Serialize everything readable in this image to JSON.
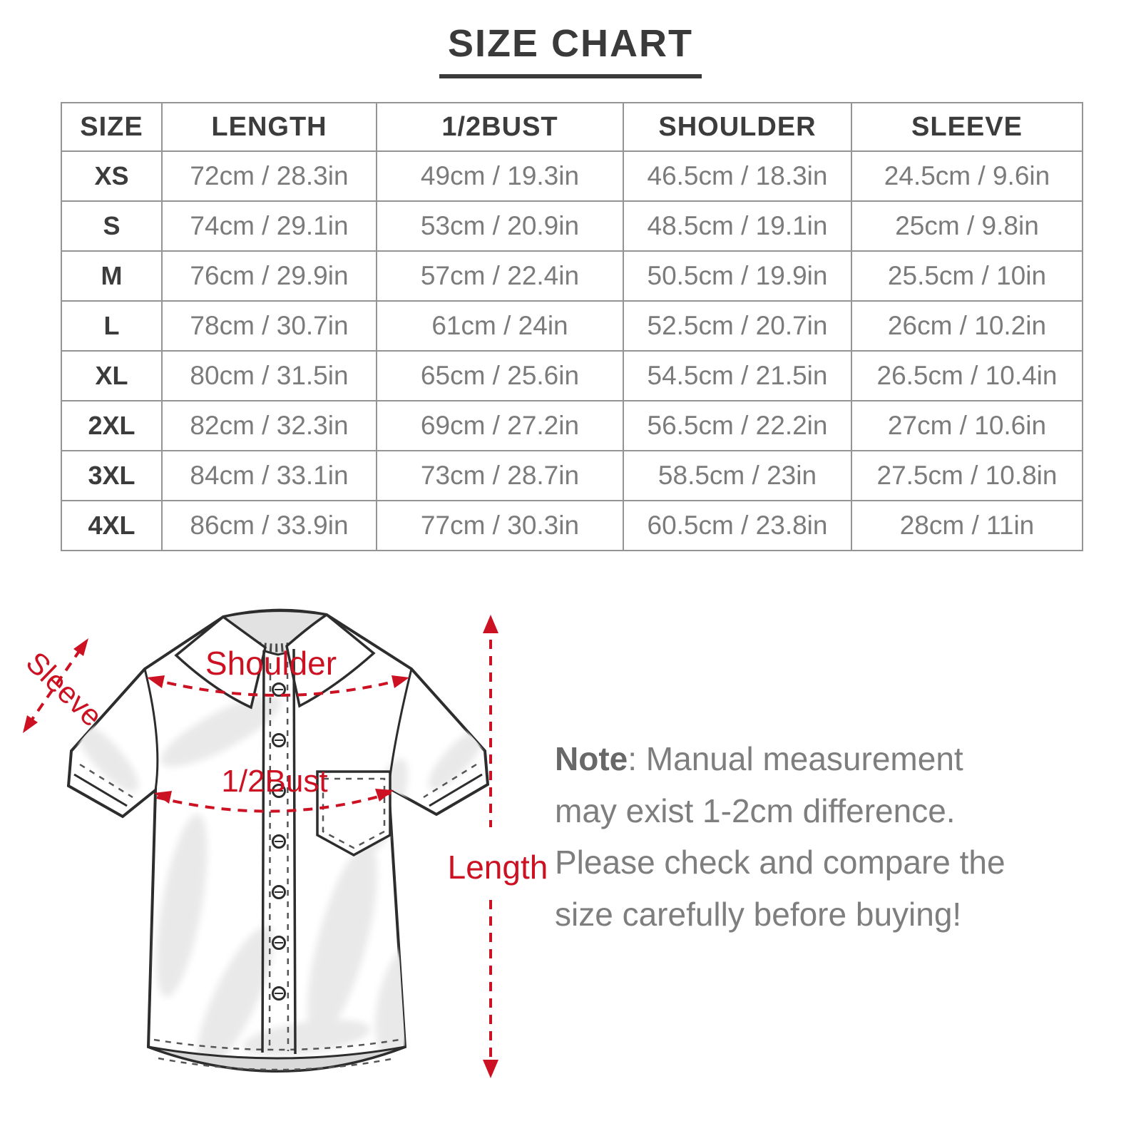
{
  "title": "SIZE CHART",
  "table": {
    "columns": [
      "SIZE",
      "LENGTH",
      "1/2BUST",
      "SHOULDER",
      "SLEEVE"
    ],
    "row_keys": [
      "size",
      "length",
      "half_bust",
      "shoulder",
      "sleeve"
    ],
    "rows": [
      {
        "size": "XS",
        "length": "72cm / 28.3in",
        "half_bust": "49cm / 19.3in",
        "shoulder": "46.5cm / 18.3in",
        "sleeve": "24.5cm / 9.6in"
      },
      {
        "size": "S",
        "length": "74cm / 29.1in",
        "half_bust": "53cm / 20.9in",
        "shoulder": "48.5cm / 19.1in",
        "sleeve": "25cm / 9.8in"
      },
      {
        "size": "M",
        "length": "76cm / 29.9in",
        "half_bust": "57cm / 22.4in",
        "shoulder": "50.5cm / 19.9in",
        "sleeve": "25.5cm / 10in"
      },
      {
        "size": "L",
        "length": "78cm / 30.7in",
        "half_bust": "61cm / 24in",
        "shoulder": "52.5cm / 20.7in",
        "sleeve": "26cm / 10.2in"
      },
      {
        "size": "XL",
        "length": "80cm / 31.5in",
        "half_bust": "65cm / 25.6in",
        "shoulder": "54.5cm / 21.5in",
        "sleeve": "26.5cm / 10.4in"
      },
      {
        "size": "2XL",
        "length": "82cm / 32.3in",
        "half_bust": "69cm / 27.2in",
        "shoulder": "56.5cm / 22.2in",
        "sleeve": "27cm / 10.6in"
      },
      {
        "size": "3XL",
        "length": "84cm / 33.1in",
        "half_bust": "73cm / 28.7in",
        "shoulder": "58.5cm / 23in",
        "sleeve": "27.5cm / 10.8in"
      },
      {
        "size": "4XL",
        "length": "86cm / 33.9in",
        "half_bust": "77cm / 30.3in",
        "shoulder": "60.5cm / 23.8in",
        "sleeve": "28cm / 11in"
      }
    ]
  },
  "diagram": {
    "labels": {
      "sleeve": "Sleeve",
      "shoulder": "Shoulder",
      "half_bust": "1/2Bust",
      "length": "Length"
    },
    "accent_color": "#cc1122"
  },
  "note": {
    "label": "Note",
    "text": ": Manual measurement may exist 1-2cm difference. Please check and compare the size carefully before buying!"
  }
}
